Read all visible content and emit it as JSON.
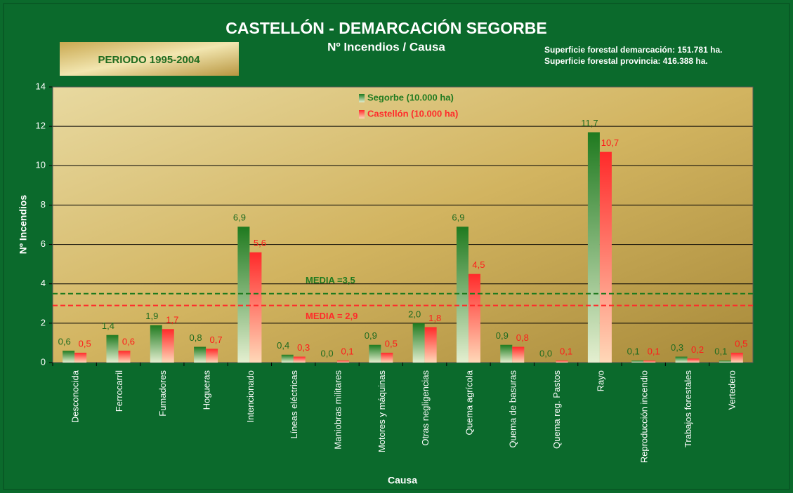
{
  "chart_data": {
    "type": "bar",
    "title": "CASTELLÓN - DEMARCACIÓN  SEGORBE",
    "subtitle": "Nº Incendios / Causa",
    "period": "PERIODO 1995-2004",
    "notes": [
      "Superficie forestal  demarcación: 151.781 ha.",
      "Superficie forestal  provincia: 416.388 ha."
    ],
    "y_label": "Nº Incendios",
    "x_label": "Causa",
    "categories": [
      "Desconocida",
      "Ferrocarril",
      "Fumadores",
      "Hogueras",
      "Intencionado",
      "Líneas eléctricas",
      "Maniobras militares",
      "Motores y máquinas",
      "Otras negligencias",
      "Quema agrícola",
      "Quema de basuras",
      "Quema reg. Pastos",
      "Rayo",
      "Reproducción incendio",
      "Trabajos forestales",
      "Vertedero"
    ],
    "series": [
      {
        "name": "Segorbe (10.000  ha)",
        "color": "#1f7a1f",
        "values": [
          0.6,
          1.4,
          1.9,
          0.8,
          6.9,
          0.4,
          0.0,
          0.9,
          2.0,
          6.9,
          0.9,
          0.0,
          11.7,
          0.1,
          0.3,
          0.1
        ],
        "value_labels": [
          "0,6",
          "1,4",
          "1,9",
          "0,8",
          "6,9",
          "0,4",
          "0,0",
          "0,9",
          "2,0",
          "6,9",
          "0,9",
          "0,0",
          "11,7",
          "0,1",
          "0,3",
          "0,1"
        ]
      },
      {
        "name": "Castellón  (10.000  ha)",
        "color": "#ff2a2a",
        "values": [
          0.5,
          0.6,
          1.7,
          0.7,
          5.6,
          0.3,
          0.1,
          0.5,
          1.8,
          4.5,
          0.8,
          0.1,
          10.7,
          0.1,
          0.2,
          0.5
        ],
        "value_labels": [
          "0,5",
          "0,6",
          "1,7",
          "0,7",
          "5,6",
          "0,3",
          "0,1",
          "0,5",
          "1,8",
          "4,5",
          "0,8",
          "0,1",
          "10,7",
          "0,1",
          "0,2",
          "0,5"
        ]
      }
    ],
    "reference_lines": [
      {
        "value": 3.5,
        "label": "MEDIA =3,5",
        "color": "#1f7a1f"
      },
      {
        "value": 2.9,
        "label": "MEDIA = 2,9",
        "color": "#ff2a2a"
      }
    ],
    "ylim": [
      0,
      14
    ],
    "yticks": [
      0,
      2,
      4,
      6,
      8,
      10,
      12,
      14
    ],
    "grid": true,
    "legend": "top"
  }
}
